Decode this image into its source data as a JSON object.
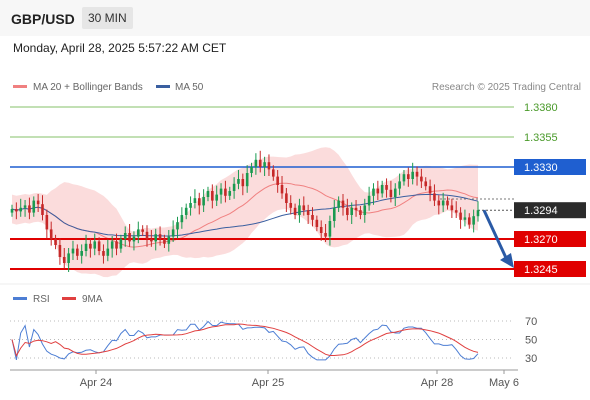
{
  "header": {
    "symbol": "GBP/USD",
    "timeframe": "30 MIN"
  },
  "datetime": "Monday, April 28, 2025 5:57:22 AM CET",
  "legend": {
    "ma20": "MA 20 + Bollinger Bands",
    "ma50": "MA 50",
    "credit": "Research © 2025 Trading Central"
  },
  "rsi_legend": {
    "rsi": "RSI",
    "ma9": "9MA"
  },
  "colors": {
    "ma20": "#f08080",
    "ma50": "#3a5fa0",
    "up": "#1a9a50",
    "down": "#c62828",
    "bands": "#fbd8d8",
    "support": "#e00000",
    "pivot": "#1f5fd0",
    "resistance": "#86c06a",
    "rsi": "#4d7ed4",
    "rsi_ma": "#e04040"
  },
  "chart_data": [
    {
      "type": "candlestick",
      "title": "GBP/USD",
      "ylim": [
        1.322,
        1.3395
      ],
      "x_labels": [
        "Apr 24",
        "Apr 25",
        "Apr 28",
        "May 6"
      ],
      "levels": [
        {
          "value": 1.338,
          "label": "1.3380",
          "kind": "resistance"
        },
        {
          "value": 1.3355,
          "label": "1.3355",
          "kind": "resistance"
        },
        {
          "value": 1.333,
          "label": "1.3330",
          "kind": "pivot"
        },
        {
          "value": 1.327,
          "label": "1.3270",
          "kind": "support"
        },
        {
          "value": 1.3245,
          "label": "1.3245",
          "kind": "support"
        }
      ],
      "last_price": {
        "value": 1.3294,
        "label": "1.3294"
      },
      "forecast_arrow": {
        "from": 1.3294,
        "to": 1.3245
      },
      "closes": [
        1.3295,
        1.3293,
        1.3296,
        1.3298,
        1.3292,
        1.3302,
        1.3299,
        1.329,
        1.3278,
        1.327,
        1.3265,
        1.3255,
        1.325,
        1.3258,
        1.3262,
        1.3256,
        1.326,
        1.3266,
        1.3262,
        1.3268,
        1.326,
        1.3256,
        1.3262,
        1.3268,
        1.3262,
        1.327,
        1.3275,
        1.3268,
        1.3272,
        1.3278,
        1.3276,
        1.327,
        1.3268,
        1.3274,
        1.327,
        1.3266,
        1.3272,
        1.3278,
        1.3284,
        1.329,
        1.3296,
        1.33,
        1.3304,
        1.3298,
        1.3305,
        1.331,
        1.3302,
        1.3307,
        1.3312,
        1.3306,
        1.331,
        1.3316,
        1.332,
        1.3314,
        1.3325,
        1.333,
        1.3336,
        1.333,
        1.3334,
        1.3328,
        1.3322,
        1.3315,
        1.3308,
        1.33,
        1.3296,
        1.329,
        1.3298,
        1.3294,
        1.329,
        1.3286,
        1.328,
        1.3275,
        1.3272,
        1.3285,
        1.3296,
        1.3302,
        1.3296,
        1.329,
        1.3296,
        1.3294,
        1.329,
        1.3298,
        1.3306,
        1.3312,
        1.3308,
        1.3315,
        1.3311,
        1.3305,
        1.3312,
        1.3318,
        1.3324,
        1.332,
        1.3326,
        1.3322,
        1.3318,
        1.3314,
        1.3308,
        1.3302,
        1.3298,
        1.3302,
        1.3298,
        1.3294,
        1.3292,
        1.3286,
        1.3288,
        1.3282,
        1.3289,
        1.3294
      ]
    },
    {
      "type": "line",
      "title": "RSI",
      "ylim": [
        25,
        75
      ],
      "ticks": [
        70,
        50,
        30
      ],
      "series": [
        {
          "name": "RSI"
        },
        {
          "name": "9MA"
        }
      ]
    }
  ]
}
